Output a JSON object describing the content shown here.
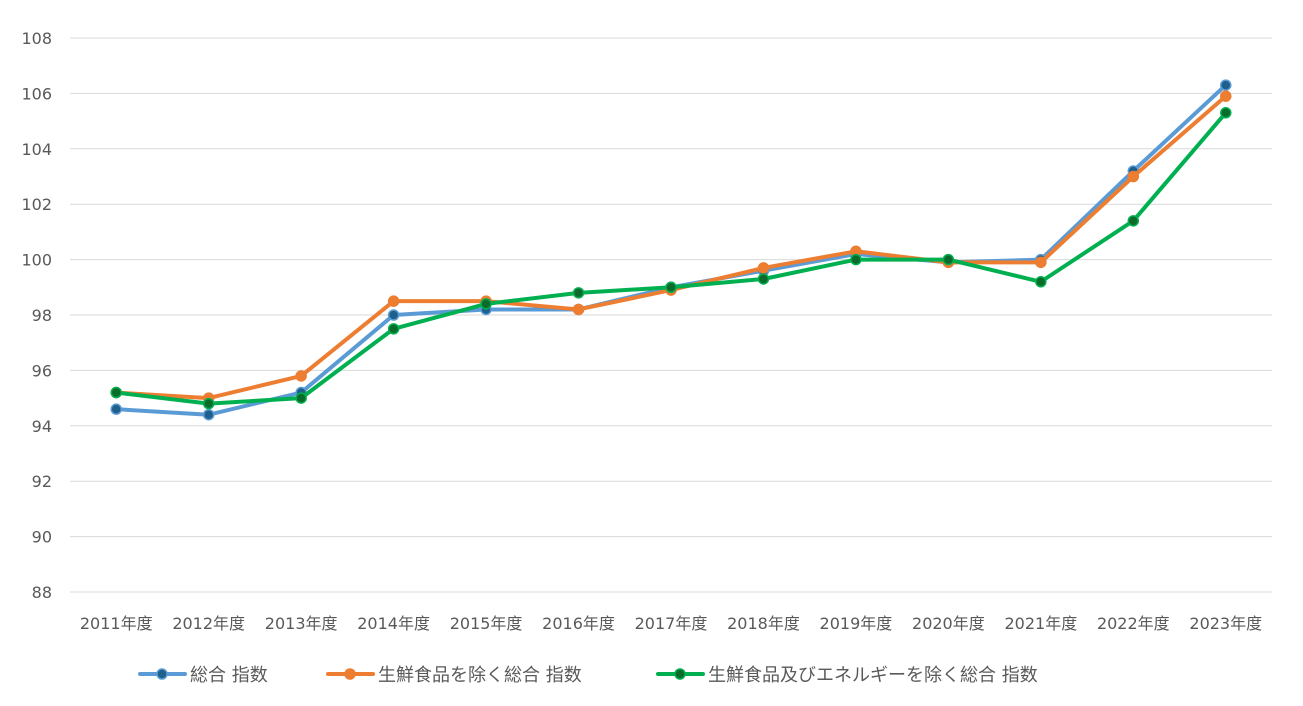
{
  "chart_data": {
    "type": "line",
    "title": "",
    "xlabel": "",
    "ylabel": "",
    "ylim": [
      88,
      108
    ],
    "ytick_step": 2,
    "grid": true,
    "legend_position": "bottom",
    "categories": [
      "2011年度",
      "2012年度",
      "2013年度",
      "2014年度",
      "2015年度",
      "2016年度",
      "2017年度",
      "2018年度",
      "2019年度",
      "2020年度",
      "2021年度",
      "2022年度",
      "2023年度"
    ],
    "series": [
      {
        "name": "総合 指数",
        "color": "#5b9bd5",
        "marker_color": "#1f5f8b",
        "values": [
          94.6,
          94.4,
          95.2,
          98.0,
          98.2,
          98.2,
          99.0,
          99.6,
          100.2,
          99.9,
          100.0,
          103.2,
          106.3
        ]
      },
      {
        "name": "生鮮食品を除く総合 指数",
        "color": "#ed7d31",
        "marker_color": "#ed7d31",
        "values": [
          95.2,
          95.0,
          95.8,
          98.5,
          98.5,
          98.2,
          98.9,
          99.7,
          100.3,
          99.9,
          99.9,
          103.0,
          105.9
        ]
      },
      {
        "name": "生鮮食品及びエネルギーを除く総合 指数",
        "color": "#00b050",
        "marker_color": "#0b6b2b",
        "values": [
          95.2,
          94.8,
          95.0,
          97.5,
          98.4,
          98.8,
          99.0,
          99.3,
          100.0,
          100.0,
          99.2,
          101.4,
          105.3
        ]
      }
    ]
  }
}
